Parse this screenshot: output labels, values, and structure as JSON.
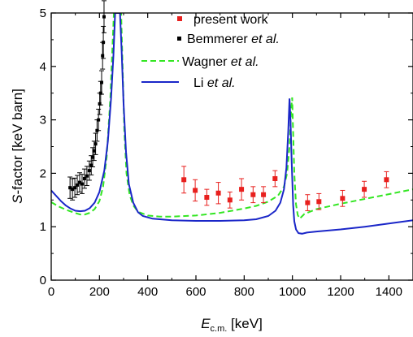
{
  "chart_data": {
    "type": "scatter",
    "xlim": [
      0,
      1500
    ],
    "ylim": [
      0,
      5
    ],
    "xticks": [
      0,
      200,
      400,
      600,
      800,
      1000,
      1200,
      1400
    ],
    "yticks": [
      0,
      1,
      2,
      3,
      4,
      5
    ],
    "xlabel": {
      "main": "E",
      "sub": "c.m.",
      "unit": " [keV]"
    },
    "ylabel": {
      "main": "S",
      "rest": "-factor [keV barn]"
    },
    "grid": false,
    "legend_position": "top-right",
    "legend": [
      {
        "key": "present",
        "text": "present work",
        "italic": ""
      },
      {
        "key": "bemmerer",
        "text": "Bemmerer ",
        "italic": "et al."
      },
      {
        "key": "wagner",
        "text": "Wagner ",
        "italic": "et al."
      },
      {
        "key": "li",
        "text": "Li ",
        "italic": "et al."
      }
    ],
    "series": [
      {
        "key": "present",
        "kind": "points",
        "color": "#e8201e",
        "points": [
          {
            "x": 550,
            "y": 1.88,
            "err": 0.25
          },
          {
            "x": 597,
            "y": 1.68,
            "err": 0.2
          },
          {
            "x": 645,
            "y": 1.55,
            "err": 0.15
          },
          {
            "x": 693,
            "y": 1.63,
            "err": 0.2
          },
          {
            "x": 741,
            "y": 1.5,
            "err": 0.15
          },
          {
            "x": 789,
            "y": 1.7,
            "err": 0.2
          },
          {
            "x": 837,
            "y": 1.6,
            "err": 0.15
          },
          {
            "x": 880,
            "y": 1.6,
            "err": 0.15
          },
          {
            "x": 928,
            "y": 1.9,
            "err": 0.15
          },
          {
            "x": 1063,
            "y": 1.45,
            "err": 0.15
          },
          {
            "x": 1110,
            "y": 1.47,
            "err": 0.15
          },
          {
            "x": 1208,
            "y": 1.53,
            "err": 0.15
          },
          {
            "x": 1298,
            "y": 1.7,
            "err": 0.15
          },
          {
            "x": 1390,
            "y": 1.88,
            "err": 0.15
          }
        ]
      },
      {
        "key": "bemmerer",
        "kind": "points",
        "color": "#000000",
        "points": [
          {
            "x": 78,
            "y": 1.73,
            "err": 0.2
          },
          {
            "x": 88,
            "y": 1.7,
            "err": 0.2
          },
          {
            "x": 98,
            "y": 1.73,
            "err": 0.18
          },
          {
            "x": 108,
            "y": 1.78,
            "err": 0.18
          },
          {
            "x": 118,
            "y": 1.83,
            "err": 0.18
          },
          {
            "x": 128,
            "y": 1.8,
            "err": 0.18
          },
          {
            "x": 138,
            "y": 1.9,
            "err": 0.18
          },
          {
            "x": 148,
            "y": 1.95,
            "err": 0.18
          },
          {
            "x": 158,
            "y": 2.05,
            "err": 0.18
          },
          {
            "x": 166,
            "y": 2.15,
            "err": 0.18
          },
          {
            "x": 172,
            "y": 2.3,
            "err": 0.18
          },
          {
            "x": 178,
            "y": 2.42,
            "err": 0.18
          },
          {
            "x": 184,
            "y": 2.55,
            "err": 0.2
          },
          {
            "x": 190,
            "y": 2.8,
            "err": 0.2
          },
          {
            "x": 196,
            "y": 3.0,
            "err": 0.2
          },
          {
            "x": 201,
            "y": 3.3,
            "err": 0.2
          },
          {
            "x": 205,
            "y": 3.5,
            "err": 0.22
          },
          {
            "x": 209,
            "y": 3.7,
            "err": 0.22
          },
          {
            "x": 213,
            "y": 4.2,
            "err": 0.25
          },
          {
            "x": 216,
            "y": 4.45,
            "err": 0.3
          },
          {
            "x": 219,
            "y": 4.93,
            "err": 0.3
          }
        ]
      },
      {
        "key": "wagner",
        "kind": "line",
        "color": "#33e622",
        "dash": "7,4",
        "points": [
          [
            0,
            1.46
          ],
          [
            30,
            1.38
          ],
          [
            60,
            1.32
          ],
          [
            90,
            1.27
          ],
          [
            120,
            1.23
          ],
          [
            140,
            1.23
          ],
          [
            160,
            1.26
          ],
          [
            180,
            1.33
          ],
          [
            200,
            1.48
          ],
          [
            215,
            1.75
          ],
          [
            230,
            2.3
          ],
          [
            245,
            3.4
          ],
          [
            255,
            4.5
          ],
          [
            260,
            5.0
          ],
          [
            290,
            5.0
          ],
          [
            296,
            4.0
          ],
          [
            303,
            2.8
          ],
          [
            312,
            2.0
          ],
          [
            325,
            1.6
          ],
          [
            340,
            1.4
          ],
          [
            360,
            1.28
          ],
          [
            400,
            1.21
          ],
          [
            450,
            1.19
          ],
          [
            500,
            1.19
          ],
          [
            600,
            1.21
          ],
          [
            700,
            1.26
          ],
          [
            800,
            1.34
          ],
          [
            850,
            1.39
          ],
          [
            900,
            1.47
          ],
          [
            940,
            1.58
          ],
          [
            965,
            1.75
          ],
          [
            978,
            2.0
          ],
          [
            988,
            2.5
          ],
          [
            995,
            3.2
          ],
          [
            999,
            3.42
          ],
          [
            1002,
            2.9
          ],
          [
            1008,
            2.0
          ],
          [
            1015,
            1.42
          ],
          [
            1022,
            1.22
          ],
          [
            1030,
            1.15
          ],
          [
            1050,
            1.24
          ],
          [
            1100,
            1.33
          ],
          [
            1200,
            1.43
          ],
          [
            1300,
            1.52
          ],
          [
            1400,
            1.61
          ],
          [
            1500,
            1.7
          ]
        ]
      },
      {
        "key": "li",
        "kind": "line",
        "color": "#1a26c8",
        "dash": "",
        "points": [
          [
            0,
            1.68
          ],
          [
            20,
            1.58
          ],
          [
            40,
            1.48
          ],
          [
            60,
            1.4
          ],
          [
            80,
            1.34
          ],
          [
            100,
            1.3
          ],
          [
            120,
            1.29
          ],
          [
            140,
            1.3
          ],
          [
            160,
            1.35
          ],
          [
            180,
            1.45
          ],
          [
            200,
            1.65
          ],
          [
            220,
            2.05
          ],
          [
            235,
            2.6
          ],
          [
            248,
            3.4
          ],
          [
            258,
            4.2
          ],
          [
            265,
            5.0
          ],
          [
            285,
            5.0
          ],
          [
            292,
            4.3
          ],
          [
            300,
            3.3
          ],
          [
            310,
            2.4
          ],
          [
            322,
            1.8
          ],
          [
            340,
            1.45
          ],
          [
            360,
            1.27
          ],
          [
            380,
            1.2
          ],
          [
            420,
            1.15
          ],
          [
            500,
            1.12
          ],
          [
            600,
            1.11
          ],
          [
            700,
            1.11
          ],
          [
            800,
            1.12
          ],
          [
            850,
            1.14
          ],
          [
            900,
            1.2
          ],
          [
            930,
            1.3
          ],
          [
            950,
            1.45
          ],
          [
            965,
            1.7
          ],
          [
            975,
            2.1
          ],
          [
            983,
            2.8
          ],
          [
            988,
            3.4
          ],
          [
            992,
            3.0
          ],
          [
            997,
            2.2
          ],
          [
            1003,
            1.4
          ],
          [
            1008,
            1.1
          ],
          [
            1015,
            0.95
          ],
          [
            1025,
            0.88
          ],
          [
            1040,
            0.87
          ],
          [
            1060,
            0.89
          ],
          [
            1100,
            0.91
          ],
          [
            1200,
            0.95
          ],
          [
            1300,
            1.0
          ],
          [
            1400,
            1.06
          ],
          [
            1500,
            1.12
          ]
        ]
      }
    ]
  }
}
